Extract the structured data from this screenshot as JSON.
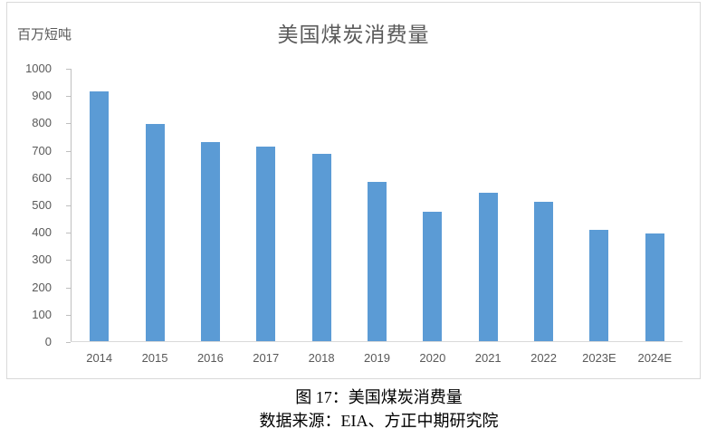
{
  "chart_data": {
    "type": "bar",
    "title": "美国煤炭消费量",
    "unit_label": "百万短吨",
    "categories": [
      "2014",
      "2015",
      "2016",
      "2017",
      "2018",
      "2019",
      "2020",
      "2021",
      "2022",
      "2023E",
      "2024E"
    ],
    "values": [
      917,
      798,
      731,
      716,
      688,
      586,
      477,
      546,
      513,
      410,
      398
    ],
    "ylim": [
      0,
      1000
    ],
    "yticks": [
      0,
      100,
      200,
      300,
      400,
      500,
      600,
      700,
      800,
      900,
      1000
    ],
    "grid": false,
    "legend": "none",
    "colors": {
      "bar": "#5b9bd5",
      "axis": "#bfbfbf",
      "labels": "#595959",
      "border": "#d9d9d9"
    }
  },
  "caption": {
    "figure_label": "图 17：美国煤炭消费量",
    "source": "数据来源：EIA、方正中期研究院"
  }
}
